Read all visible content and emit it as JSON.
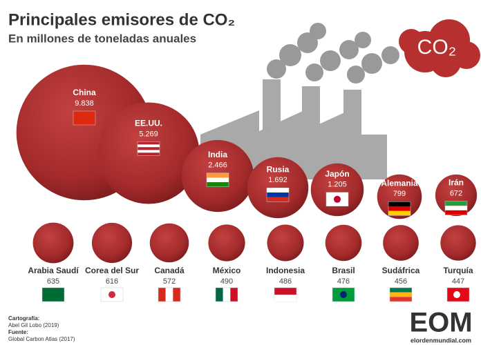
{
  "chart_data": {
    "type": "bubble",
    "title": "Principales emisores de CO₂",
    "subtitle": "En millones de toneladas anuales",
    "badge": "CO₂",
    "categories": [
      "China",
      "EE.UU.",
      "India",
      "Rusia",
      "Japón",
      "Alemania",
      "Irán",
      "Arabia Saudí",
      "Corea del Sur",
      "Canadá",
      "México",
      "Indonesia",
      "Brasil",
      "Sudáfrica",
      "Turquía"
    ],
    "values": [
      9838,
      5269,
      2466,
      1692,
      1205,
      799,
      672,
      635,
      616,
      572,
      490,
      486,
      476,
      456,
      447
    ],
    "value_labels": [
      "9.838",
      "5.269",
      "2.466",
      "1.692",
      "1.205",
      "799",
      "672",
      "635",
      "616",
      "572",
      "490",
      "486",
      "476",
      "456",
      "447"
    ],
    "color": "#a52a2c",
    "credits": [
      "Cartografía:",
      "Abel Gil Lobo (2019)",
      "Fuente:",
      "Global Carbon Atlas (2017)"
    ],
    "logo": "EOM",
    "website": "elordenmundial.com"
  }
}
